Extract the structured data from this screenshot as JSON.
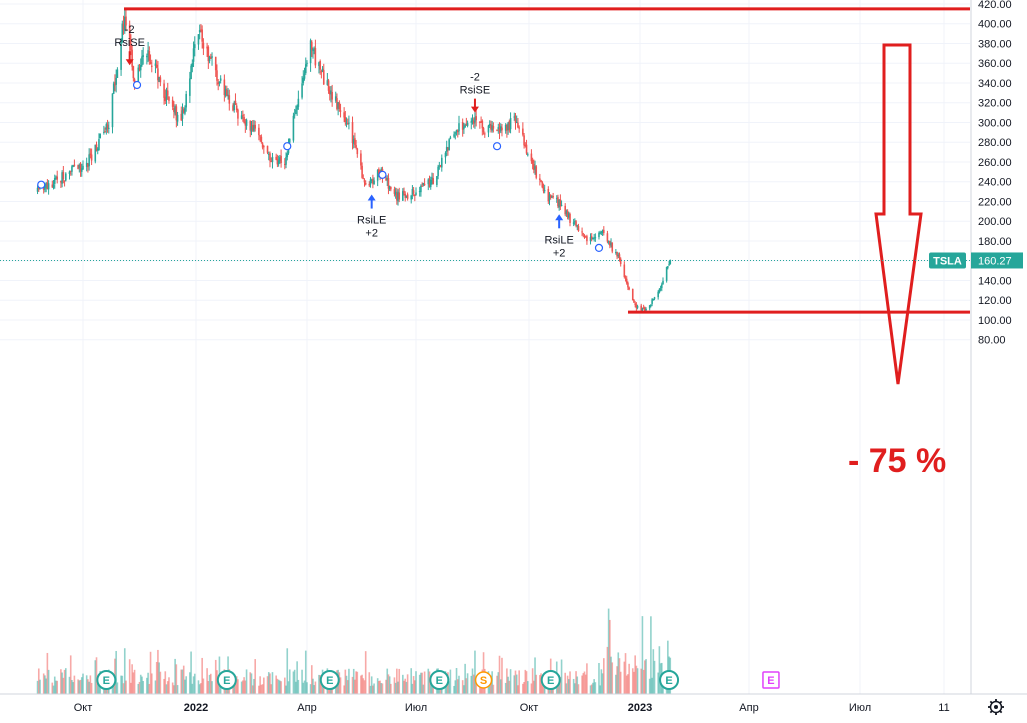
{
  "chart_data": {
    "type": "candlestick",
    "symbol": "TSLA",
    "last_price": "160.27",
    "y_axis": {
      "ticks": [
        "420.00",
        "400.00",
        "380.00",
        "360.00",
        "340.00",
        "320.00",
        "300.00",
        "280.00",
        "260.00",
        "240.00",
        "220.00",
        "200.00",
        "180.00",
        "160.00",
        "140.00",
        "120.00",
        "100.00",
        "80.00"
      ],
      "range": [
        74,
        423
      ]
    },
    "x_axis": {
      "ticks": [
        "Окт",
        "2022",
        "Апр",
        "Июл",
        "Окт",
        "2023",
        "Апр",
        "Июл",
        "11"
      ]
    },
    "price_anchors": [
      {
        "date": "2021-08-25",
        "close": 230
      },
      {
        "date": "2021-09-15",
        "close": 245
      },
      {
        "date": "2021-10-05",
        "close": 260
      },
      {
        "date": "2021-10-22",
        "close": 300
      },
      {
        "date": "2021-11-04",
        "close": 410
      },
      {
        "date": "2021-11-12",
        "close": 340
      },
      {
        "date": "2021-11-20",
        "close": 380
      },
      {
        "date": "2021-12-06",
        "close": 330
      },
      {
        "date": "2021-12-20",
        "close": 300
      },
      {
        "date": "2022-01-03",
        "close": 395
      },
      {
        "date": "2022-01-20",
        "close": 340
      },
      {
        "date": "2022-02-05",
        "close": 305
      },
      {
        "date": "2022-02-20",
        "close": 290
      },
      {
        "date": "2022-03-01",
        "close": 265
      },
      {
        "date": "2022-03-15",
        "close": 260
      },
      {
        "date": "2022-03-25",
        "close": 330
      },
      {
        "date": "2022-04-04",
        "close": 375
      },
      {
        "date": "2022-04-20",
        "close": 330
      },
      {
        "date": "2022-05-05",
        "close": 300
      },
      {
        "date": "2022-05-20",
        "close": 235
      },
      {
        "date": "2022-06-01",
        "close": 250
      },
      {
        "date": "2022-06-15",
        "close": 225
      },
      {
        "date": "2022-07-01",
        "close": 230
      },
      {
        "date": "2022-07-15",
        "close": 240
      },
      {
        "date": "2022-08-01",
        "close": 290
      },
      {
        "date": "2022-08-15",
        "close": 308
      },
      {
        "date": "2022-08-25",
        "close": 295
      },
      {
        "date": "2022-09-10",
        "close": 290
      },
      {
        "date": "2022-09-20",
        "close": 305
      },
      {
        "date": "2022-10-01",
        "close": 265
      },
      {
        "date": "2022-10-15",
        "close": 225
      },
      {
        "date": "2022-10-25",
        "close": 220
      },
      {
        "date": "2022-11-05",
        "close": 200
      },
      {
        "date": "2022-11-20",
        "close": 180
      },
      {
        "date": "2022-12-01",
        "close": 190
      },
      {
        "date": "2022-12-15",
        "close": 160
      },
      {
        "date": "2022-12-27",
        "close": 115
      },
      {
        "date": "2023-01-05",
        "close": 110
      },
      {
        "date": "2023-01-15",
        "close": 125
      },
      {
        "date": "2023-01-26",
        "close": 160
      }
    ],
    "signals": [
      {
        "type": "short",
        "line1": "-2",
        "line2": "RsiSE",
        "date": "2021-11-08",
        "price": 360
      },
      {
        "type": "long",
        "line1": "RsiLE",
        "line2": "+2",
        "date": "2022-05-25",
        "price": 225
      },
      {
        "type": "short",
        "line1": "-2",
        "line2": "RsiSE",
        "date": "2022-08-18",
        "price": 312
      },
      {
        "type": "long",
        "line1": "RsiLE",
        "line2": "+2",
        "date": "2022-10-26",
        "price": 205
      }
    ],
    "event_markers": [
      {
        "label": "E",
        "date": "2021-10-20",
        "color": "#26a69a"
      },
      {
        "label": "E",
        "date": "2022-01-26",
        "color": "#26a69a"
      },
      {
        "label": "E",
        "date": "2022-04-20",
        "color": "#26a69a"
      },
      {
        "label": "E",
        "date": "2022-07-20",
        "color": "#26a69a"
      },
      {
        "label": "S",
        "date": "2022-08-25",
        "color": "#ff9800"
      },
      {
        "label": "E",
        "date": "2022-10-19",
        "color": "#26a69a"
      },
      {
        "label": "E",
        "date": "2023-01-25",
        "color": "#26a69a"
      },
      {
        "label": "E",
        "date": "2023-04-19",
        "color": "#e040fb"
      }
    ],
    "annotations": {
      "top_line_price": 415,
      "bottom_line_price": 108,
      "percent_text": "- 75 %",
      "colors": {
        "up": "#26a69a",
        "down": "#ef5350",
        "annotation": "#e01e1e",
        "blue": "#2962ff"
      }
    },
    "grid": true
  }
}
